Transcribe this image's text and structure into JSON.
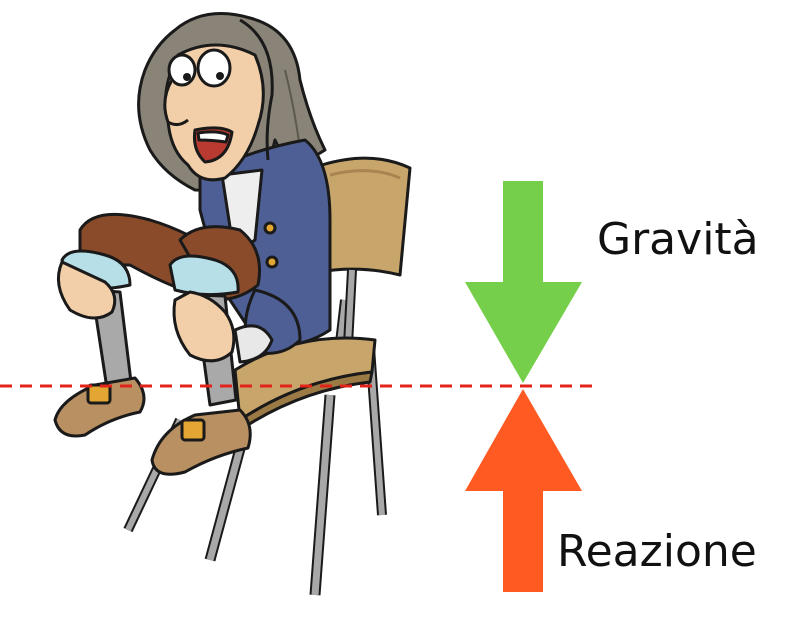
{
  "labels": {
    "gravity": "Gravità",
    "reaction": "Reazione"
  },
  "colors": {
    "gravity_arrow": "#76cf4a",
    "reaction_arrow": "#ff5a22",
    "ground_line": "#e2231a",
    "coat": "#4d5f95",
    "breeches": "#8a4b2a",
    "chair_seat": "#c8a56a",
    "chair_frame": "#9a9a9a",
    "hair": "#8a8478",
    "skin": "#f2cfa8",
    "shoe": "#b99062"
  },
  "icons": {
    "gravity_arrow": "arrow-down-icon",
    "reaction_arrow": "arrow-up-icon",
    "figure": "seated-man-illustration"
  }
}
